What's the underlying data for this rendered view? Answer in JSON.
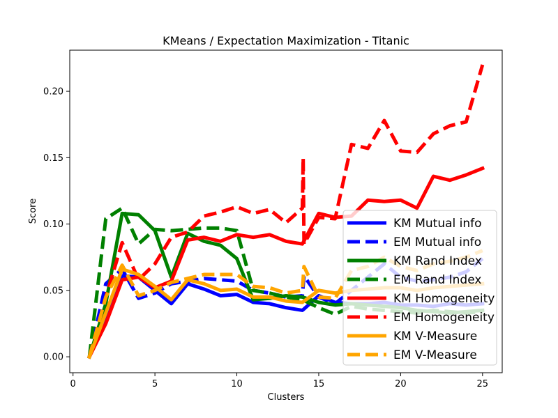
{
  "chart_data": {
    "type": "line",
    "title": "KMeans / Expectation Maximization - Titanic",
    "xlabel": "Clusters",
    "ylabel": "Score",
    "xlim": [
      -0.2,
      26.2
    ],
    "ylim": [
      -0.012,
      0.231
    ],
    "xticks": [
      "0",
      "5",
      "10",
      "15",
      "20",
      "25"
    ],
    "yticks": [
      "0.00",
      "0.05",
      "0.10",
      "0.15",
      "0.20"
    ],
    "grid": false,
    "legend_position": "lower right",
    "series": [
      {
        "name": "KM Mutual info",
        "color": "#0000ff",
        "style": "solid",
        "points": [
          [
            1,
            0
          ],
          [
            2,
            0.03
          ],
          [
            3,
            0.061
          ],
          [
            4,
            0.06
          ],
          [
            5,
            0.05
          ],
          [
            6,
            0.04
          ],
          [
            7,
            0.055
          ],
          [
            8,
            0.051
          ],
          [
            9,
            0.046
          ],
          [
            10,
            0.047
          ],
          [
            11,
            0.041
          ],
          [
            12,
            0.04
          ],
          [
            13,
            0.037
          ],
          [
            14,
            0.035
          ],
          [
            14.1,
            0.036
          ],
          [
            15,
            0.046
          ],
          [
            16,
            0.041
          ],
          [
            17,
            0.04
          ],
          [
            18,
            0.04
          ],
          [
            19,
            0.041
          ],
          [
            20,
            0.039
          ],
          [
            21,
            0.039
          ],
          [
            22,
            0.038
          ],
          [
            23,
            0.04
          ],
          [
            24,
            0.039
          ],
          [
            25,
            0.04
          ]
        ]
      },
      {
        "name": "EM Mutual info",
        "color": "#0000ff",
        "style": "dashed",
        "points": [
          [
            1,
            0
          ],
          [
            2,
            0.055
          ],
          [
            3,
            0.066
          ],
          [
            4,
            0.044
          ],
          [
            5,
            0.048
          ],
          [
            6,
            0.055
          ],
          [
            7,
            0.057
          ],
          [
            8,
            0.059
          ],
          [
            9,
            0.058
          ],
          [
            10,
            0.057
          ],
          [
            11,
            0.05
          ],
          [
            12,
            0.048
          ],
          [
            13,
            0.045
          ],
          [
            14,
            0.046
          ],
          [
            14.1,
            0.061
          ],
          [
            15,
            0.045
          ],
          [
            16,
            0.04
          ],
          [
            17,
            0.05
          ],
          [
            18,
            0.06
          ],
          [
            19,
            0.07
          ],
          [
            20,
            0.06
          ],
          [
            21,
            0.057
          ],
          [
            22,
            0.058
          ],
          [
            23,
            0.06
          ],
          [
            24,
            0.064
          ],
          [
            25,
            0.074
          ]
        ]
      },
      {
        "name": "KM Rand Index",
        "color": "#008000",
        "style": "solid",
        "points": [
          [
            1,
            0
          ],
          [
            2,
            0.04
          ],
          [
            3,
            0.108
          ],
          [
            4,
            0.107
          ],
          [
            5,
            0.095
          ],
          [
            6,
            0.06
          ],
          [
            7,
            0.093
          ],
          [
            8,
            0.087
          ],
          [
            9,
            0.084
          ],
          [
            10,
            0.074
          ],
          [
            11,
            0.043
          ],
          [
            12,
            0.044
          ],
          [
            13,
            0.046
          ],
          [
            14,
            0.045
          ],
          [
            15,
            0.041
          ],
          [
            16,
            0.039
          ],
          [
            17,
            0.04
          ],
          [
            18,
            0.039
          ],
          [
            19,
            0.038
          ],
          [
            20,
            0.037
          ],
          [
            21,
            0.035
          ],
          [
            22,
            0.034
          ],
          [
            23,
            0.033
          ],
          [
            24,
            0.034
          ],
          [
            25,
            0.035
          ]
        ]
      },
      {
        "name": "EM Rand Index",
        "color": "#008000",
        "style": "dashed",
        "points": [
          [
            1,
            0
          ],
          [
            2,
            0.104
          ],
          [
            3,
            0.112
          ],
          [
            4,
            0.085
          ],
          [
            5,
            0.096
          ],
          [
            6,
            0.095
          ],
          [
            7,
            0.096
          ],
          [
            8,
            0.097
          ],
          [
            9,
            0.097
          ],
          [
            10,
            0.095
          ],
          [
            11,
            0.05
          ],
          [
            12,
            0.048
          ],
          [
            13,
            0.045
          ],
          [
            14,
            0.043
          ],
          [
            15,
            0.037
          ],
          [
            16,
            0.032
          ],
          [
            17,
            0.038
          ],
          [
            18,
            0.036
          ],
          [
            19,
            0.035
          ],
          [
            20,
            0.034
          ],
          [
            21,
            0.033
          ],
          [
            22,
            0.035
          ],
          [
            23,
            0.034
          ],
          [
            24,
            0.033
          ],
          [
            25,
            0.034
          ]
        ]
      },
      {
        "name": "KM Homogeneity",
        "color": "#ff0000",
        "style": "solid",
        "points": [
          [
            1,
            0
          ],
          [
            2,
            0.025
          ],
          [
            3,
            0.058
          ],
          [
            4,
            0.06
          ],
          [
            5,
            0.052
          ],
          [
            6,
            0.057
          ],
          [
            7,
            0.088
          ],
          [
            8,
            0.09
          ],
          [
            9,
            0.087
          ],
          [
            10,
            0.092
          ],
          [
            11,
            0.09
          ],
          [
            12,
            0.092
          ],
          [
            13,
            0.087
          ],
          [
            14,
            0.085
          ],
          [
            15,
            0.108
          ],
          [
            16,
            0.105
          ],
          [
            17,
            0.106
          ],
          [
            18,
            0.118
          ],
          [
            19,
            0.117
          ],
          [
            20,
            0.118
          ],
          [
            21,
            0.112
          ],
          [
            22,
            0.136
          ],
          [
            23,
            0.133
          ],
          [
            24,
            0.137
          ],
          [
            25,
            0.142
          ]
        ]
      },
      {
        "name": "EM Homogeneity",
        "color": "#ff0000",
        "style": "dashed",
        "points": [
          [
            1,
            0
          ],
          [
            2,
            0.045
          ],
          [
            3,
            0.086
          ],
          [
            4,
            0.058
          ],
          [
            5,
            0.07
          ],
          [
            6,
            0.09
          ],
          [
            7,
            0.094
          ],
          [
            8,
            0.106
          ],
          [
            9,
            0.109
          ],
          [
            10,
            0.113
          ],
          [
            11,
            0.108
          ],
          [
            12,
            0.111
          ],
          [
            13,
            0.101
          ],
          [
            14,
            0.112
          ],
          [
            14.05,
            0.15
          ],
          [
            14.1,
            0.085
          ],
          [
            15,
            0.105
          ],
          [
            16,
            0.104
          ],
          [
            17,
            0.16
          ],
          [
            18,
            0.157
          ],
          [
            19,
            0.178
          ],
          [
            20,
            0.155
          ],
          [
            21,
            0.154
          ],
          [
            22,
            0.168
          ],
          [
            23,
            0.174
          ],
          [
            24,
            0.177
          ],
          [
            25,
            0.22
          ]
        ]
      },
      {
        "name": "KM V-Measure",
        "color": "#ffa500",
        "style": "solid",
        "points": [
          [
            1,
            0
          ],
          [
            2,
            0.033
          ],
          [
            3,
            0.066
          ],
          [
            4,
            0.062
          ],
          [
            5,
            0.053
          ],
          [
            6,
            0.043
          ],
          [
            7,
            0.058
          ],
          [
            8,
            0.055
          ],
          [
            9,
            0.05
          ],
          [
            10,
            0.051
          ],
          [
            11,
            0.045
          ],
          [
            12,
            0.045
          ],
          [
            13,
            0.042
          ],
          [
            14,
            0.041
          ],
          [
            15,
            0.05
          ],
          [
            16,
            0.048
          ],
          [
            17,
            0.05
          ],
          [
            18,
            0.051
          ],
          [
            19,
            0.052
          ],
          [
            20,
            0.052
          ],
          [
            21,
            0.05
          ],
          [
            22,
            0.052
          ],
          [
            23,
            0.053
          ],
          [
            24,
            0.054
          ],
          [
            25,
            0.055
          ]
        ]
      },
      {
        "name": "EM V-Measure",
        "color": "#ffa500",
        "style": "dashed",
        "points": [
          [
            1,
            0
          ],
          [
            2,
            0.045
          ],
          [
            3,
            0.069
          ],
          [
            4,
            0.046
          ],
          [
            5,
            0.05
          ],
          [
            6,
            0.056
          ],
          [
            7,
            0.059
          ],
          [
            8,
            0.062
          ],
          [
            9,
            0.062
          ],
          [
            10,
            0.062
          ],
          [
            11,
            0.053
          ],
          [
            12,
            0.052
          ],
          [
            13,
            0.048
          ],
          [
            14,
            0.05
          ],
          [
            14.1,
            0.068
          ],
          [
            15,
            0.045
          ],
          [
            16,
            0.044
          ],
          [
            17,
            0.065
          ],
          [
            18,
            0.068
          ],
          [
            19,
            0.075
          ],
          [
            20,
            0.068
          ],
          [
            21,
            0.065
          ],
          [
            22,
            0.07
          ],
          [
            23,
            0.072
          ],
          [
            24,
            0.075
          ],
          [
            25,
            0.08
          ]
        ]
      }
    ]
  }
}
